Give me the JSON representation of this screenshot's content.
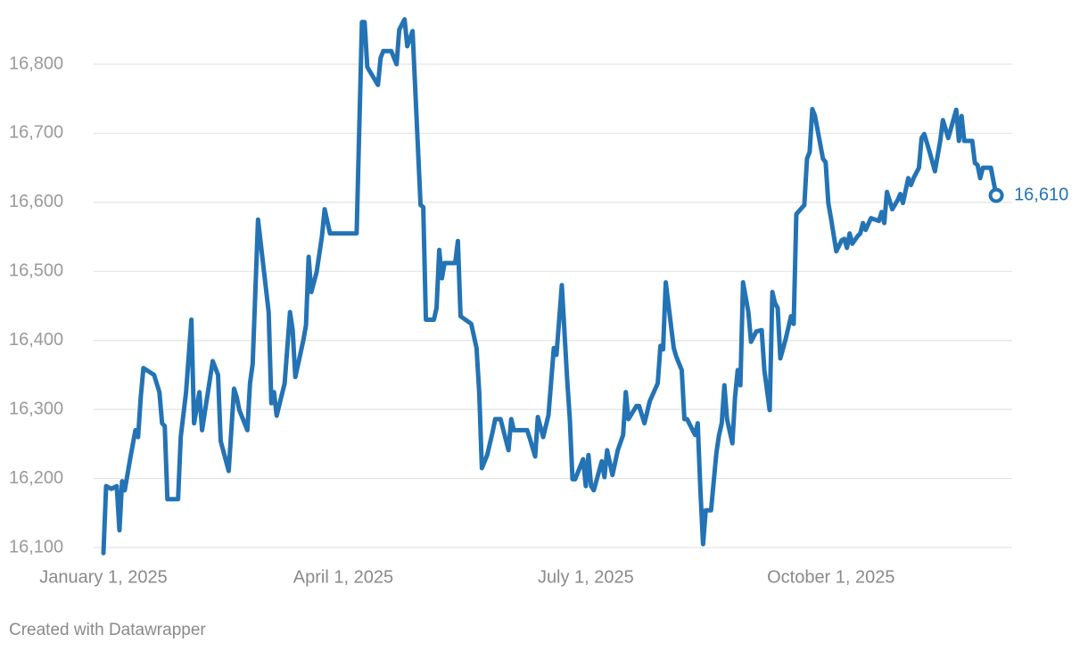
{
  "chart_data": {
    "type": "line",
    "footer": "Created with Datawrapper",
    "x": [
      "2025-01-01",
      "2025-01-02",
      "2025-01-04",
      "2025-01-06",
      "2025-01-07",
      "2025-01-08",
      "2025-01-09",
      "2025-01-11",
      "2025-01-13",
      "2025-01-14",
      "2025-01-15",
      "2025-01-16",
      "2025-01-18",
      "2025-01-20",
      "2025-01-22",
      "2025-01-23",
      "2025-01-24",
      "2025-01-25",
      "2025-01-29",
      "2025-01-30",
      "2025-02-01",
      "2025-02-03",
      "2025-02-04",
      "2025-02-06",
      "2025-02-07",
      "2025-02-11",
      "2025-02-13",
      "2025-02-14",
      "2025-02-17",
      "2025-02-19",
      "2025-02-20",
      "2025-02-21",
      "2025-02-24",
      "2025-02-25",
      "2025-02-26",
      "2025-02-28",
      "2025-03-04",
      "2025-03-05",
      "2025-03-06",
      "2025-03-07",
      "2025-03-10",
      "2025-03-12",
      "2025-03-13",
      "2025-03-14",
      "2025-03-17",
      "2025-03-18",
      "2025-03-19",
      "2025-03-20",
      "2025-03-22",
      "2025-03-24",
      "2025-03-25",
      "2025-03-27",
      "2025-04-06",
      "2025-04-08",
      "2025-04-09",
      "2025-04-10",
      "2025-04-14",
      "2025-04-15",
      "2025-04-16",
      "2025-04-19",
      "2025-04-21",
      "2025-04-22",
      "2025-04-24",
      "2025-04-25",
      "2025-04-27",
      "2025-04-28",
      "2025-04-30",
      "2025-05-01",
      "2025-05-02",
      "2025-05-05",
      "2025-05-06",
      "2025-05-07",
      "2025-05-08",
      "2025-05-09",
      "2025-05-13",
      "2025-05-14",
      "2025-05-15",
      "2025-05-19",
      "2025-05-21",
      "2025-05-22",
      "2025-05-23",
      "2025-05-25",
      "2025-05-27",
      "2025-05-28",
      "2025-05-30",
      "2025-06-02",
      "2025-06-03",
      "2025-06-04",
      "2025-06-09",
      "2025-06-10",
      "2025-06-12",
      "2025-06-13",
      "2025-06-15",
      "2025-06-17",
      "2025-06-19",
      "2025-06-20",
      "2025-06-22",
      "2025-06-24",
      "2025-06-25",
      "2025-06-26",
      "2025-06-27",
      "2025-06-30",
      "2025-07-01",
      "2025-07-02",
      "2025-07-03",
      "2025-07-04",
      "2025-07-07",
      "2025-07-08",
      "2025-07-09",
      "2025-07-11",
      "2025-07-13",
      "2025-07-15",
      "2025-07-16",
      "2025-07-17",
      "2025-07-20",
      "2025-07-21",
      "2025-07-23",
      "2025-07-25",
      "2025-07-28",
      "2025-07-29",
      "2025-07-30",
      "2025-07-31",
      "2025-08-03",
      "2025-08-04",
      "2025-08-06",
      "2025-08-07",
      "2025-08-08",
      "2025-08-11",
      "2025-08-12",
      "2025-08-13",
      "2025-08-14",
      "2025-08-15",
      "2025-08-17",
      "2025-08-19",
      "2025-08-20",
      "2025-08-21",
      "2025-08-22",
      "2025-08-23",
      "2025-08-25",
      "2025-08-26",
      "2025-08-27",
      "2025-08-28",
      "2025-08-29",
      "2025-08-31",
      "2025-09-01",
      "2025-09-03",
      "2025-09-05",
      "2025-09-06",
      "2025-09-08",
      "2025-09-09",
      "2025-09-10",
      "2025-09-11",
      "2025-09-12",
      "2025-09-14",
      "2025-09-16",
      "2025-09-17",
      "2025-09-18",
      "2025-09-21",
      "2025-09-22",
      "2025-09-23",
      "2025-09-24",
      "2025-09-25",
      "2025-09-28",
      "2025-09-29",
      "2025-09-30",
      "2025-10-01",
      "2025-10-03",
      "2025-10-05",
      "2025-10-06",
      "2025-10-07",
      "2025-10-08",
      "2025-10-09",
      "2025-10-11",
      "2025-10-12",
      "2025-10-13",
      "2025-10-14",
      "2025-10-16",
      "2025-10-19",
      "2025-10-20",
      "2025-10-21",
      "2025-10-22",
      "2025-10-24",
      "2025-10-26",
      "2025-10-27",
      "2025-10-28",
      "2025-10-30",
      "2025-10-31",
      "2025-11-01",
      "2025-11-03",
      "2025-11-04",
      "2025-11-05",
      "2025-11-07",
      "2025-11-09",
      "2025-11-11",
      "2025-11-12",
      "2025-11-14",
      "2025-11-17",
      "2025-11-18",
      "2025-11-19",
      "2025-11-20",
      "2025-11-23",
      "2025-11-24",
      "2025-11-25",
      "2025-11-26",
      "2025-11-27",
      "2025-11-30",
      "2025-12-02"
    ],
    "series": [
      {
        "color": "#2373b5",
        "values": [
          16092,
          16189,
          16185,
          16189,
          16125,
          16196,
          16183,
          16228,
          16270,
          16260,
          16318,
          16360,
          16355,
          16350,
          16325,
          16280,
          16276,
          16170,
          16170,
          16260,
          16325,
          16430,
          16280,
          16325,
          16270,
          16370,
          16350,
          16254,
          16211,
          16330,
          16318,
          16299,
          16270,
          16338,
          16366,
          16575,
          16441,
          16309,
          16325,
          16291,
          16338,
          16441,
          16415,
          16347,
          16400,
          16422,
          16521,
          16470,
          16499,
          16551,
          16590,
          16555,
          16555,
          16861,
          16861,
          16796,
          16770,
          16809,
          16819,
          16819,
          16800,
          16850,
          16865,
          16826,
          16848,
          16764,
          16596,
          16593,
          16430,
          16430,
          16447,
          16531,
          16490,
          16512,
          16512,
          16544,
          16435,
          16424,
          16389,
          16325,
          16215,
          16234,
          16267,
          16286,
          16286,
          16241,
          16286,
          16270,
          16270,
          16258,
          16232,
          16289,
          16260,
          16292,
          16389,
          16379,
          16480,
          16344,
          16286,
          16199,
          16199,
          16228,
          16189,
          16234,
          16189,
          16183,
          16225,
          16202,
          16241,
          16205,
          16241,
          16263,
          16325,
          16286,
          16305,
          16305,
          16280,
          16312,
          16338,
          16392,
          16387,
          16484,
          16389,
          16376,
          16357,
          16286,
          16286,
          16263,
          16280,
          16183,
          16105,
          16154,
          16154,
          16237,
          16263,
          16280,
          16335,
          16286,
          16251,
          16318,
          16357,
          16335,
          16484,
          16441,
          16398,
          16413,
          16415,
          16357,
          16299,
          16470,
          16454,
          16447,
          16374,
          16402,
          16435,
          16424,
          16583,
          16596,
          16663,
          16673,
          16735,
          16725,
          16663,
          16658,
          16599,
          16577,
          16529,
          16545,
          16547,
          16534,
          16555,
          16540,
          16551,
          16555,
          16570,
          16560,
          16577,
          16573,
          16586,
          16570,
          16615,
          16590,
          16603,
          16612,
          16599,
          16635,
          16625,
          16635,
          16650,
          16693,
          16699,
          16673,
          16645,
          16689,
          16719,
          16693,
          16734,
          16689,
          16725,
          16689,
          16689,
          16657,
          16654,
          16635,
          16650,
          16650,
          16610
        ]
      }
    ],
    "end_label": "16,610",
    "xlim": [
      "2025-01-01",
      "2025-12-08"
    ],
    "xticks": [
      {
        "value": "2025-01-01",
        "label": "January 1, 2025"
      },
      {
        "value": "2025-04-01",
        "label": "April 1, 2025"
      },
      {
        "value": "2025-07-01",
        "label": "July 1, 2025"
      },
      {
        "value": "2025-10-01",
        "label": "October 1, 2025"
      }
    ],
    "ylim": [
      16080,
      16870
    ],
    "yticks": [
      {
        "value": 16100,
        "label": "16,100"
      },
      {
        "value": 16200,
        "label": "16,200"
      },
      {
        "value": 16300,
        "label": "16,300"
      },
      {
        "value": 16400,
        "label": "16,400"
      },
      {
        "value": 16500,
        "label": "16,500"
      },
      {
        "value": 16600,
        "label": "16,600"
      },
      {
        "value": 16700,
        "label": "16,700"
      },
      {
        "value": 16800,
        "label": "16,800"
      }
    ],
    "grid": true
  }
}
